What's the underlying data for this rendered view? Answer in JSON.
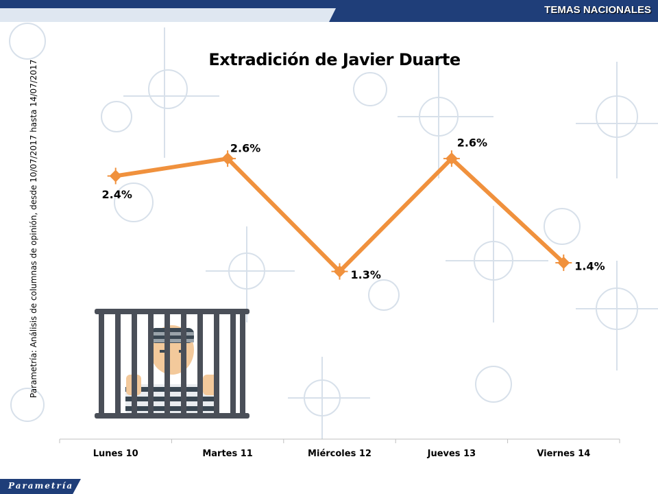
{
  "header": {
    "section": "TEMAS NACIONALES"
  },
  "side_note": "Parametría: Análisis de columnas de opinión, desde 10/07/2017 hasta 14/07/2017",
  "logo": {
    "text": "Parametría"
  },
  "icons": {
    "illustration": "prisoner-behind-bars-icon"
  },
  "colors": {
    "line": "#f0913d",
    "header": "#1f3e79",
    "axis": "#bfbfbf"
  },
  "chart_data": {
    "type": "line",
    "title": "Extradición de Javier Duarte",
    "xlabel": "",
    "ylabel": "",
    "categories": [
      "Lunes 10",
      "Martes 11",
      "Miércoles 12",
      "Jueves 13",
      "Viernes 14"
    ],
    "series": [
      {
        "values": [
          2.4,
          2.6,
          1.3,
          2.6,
          1.4
        ],
        "labels": [
          "2.4%",
          "2.6%",
          "1.3%",
          "2.6%",
          "1.4%"
        ]
      }
    ],
    "ylim": [
      0,
      3.4
    ],
    "grid": false,
    "legend": "none"
  }
}
